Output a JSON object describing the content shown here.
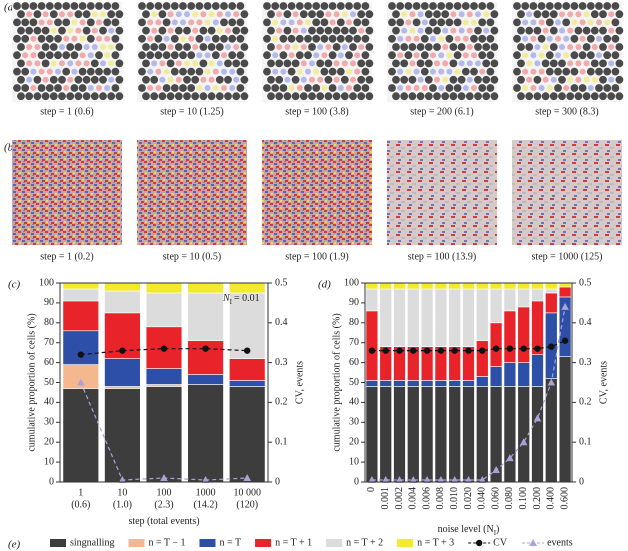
{
  "panel_a": {
    "label": "(a)",
    "captions": [
      "step = 1 (0.6)",
      "step = 10 (1.25)",
      "step = 100 (3.8)",
      "step = 200 (6.1)",
      "step = 300 (8.3)"
    ]
  },
  "panel_b": {
    "label": "(b)",
    "captions": [
      "step = 1 (0.2)",
      "step = 10 (0.5)",
      "step = 100 (1.9)",
      "step = 100 (13.9)",
      "step = 1000 (125)"
    ]
  },
  "chart_data": [
    {
      "type": "bar",
      "panel_label": "(c)",
      "categories": [
        "1",
        "10",
        "100",
        "1000",
        "10 000"
      ],
      "category_notes": [
        "(0.6)",
        "(1.0)",
        "(2.3)",
        "(14.2)",
        "(120)"
      ],
      "xlabel": "step (total events)",
      "ylabel": "cumulative proportion of cells (%)",
      "y2label": "CV, events",
      "ylim": [
        0,
        100
      ],
      "yticks": [
        0,
        10,
        20,
        30,
        40,
        50,
        60,
        70,
        80,
        90,
        100
      ],
      "y2lim": [
        0,
        0.5
      ],
      "y2ticks": [
        0,
        0.1,
        0.2,
        0.3,
        0.4,
        0.5
      ],
      "annotation": {
        "symbol": "N",
        "subscript": "I",
        "text": "= 0.01"
      },
      "series": [
        {
          "name": "singnalling",
          "color": "#3d3d3d",
          "values": [
            47,
            47,
            48,
            49,
            48
          ]
        },
        {
          "name": "n = T − 1",
          "color": "#f5b78e",
          "values": [
            12,
            1,
            1,
            0,
            0
          ]
        },
        {
          "name": "n = T",
          "color": "#2e4fa8",
          "values": [
            17,
            14,
            8,
            5,
            3
          ]
        },
        {
          "name": "n = T + 1",
          "color": "#e8242a",
          "values": [
            15,
            23,
            21,
            17,
            11
          ]
        },
        {
          "name": "n = T + 2",
          "color": "#dcdcdc",
          "values": [
            6,
            11,
            17,
            24,
            33
          ]
        },
        {
          "name": "n = T + 3",
          "color": "#f2ea2a",
          "values": [
            3,
            4,
            5,
            5,
            5
          ]
        },
        {
          "name": "CV",
          "color": "#111111",
          "axis": "y2",
          "marker": "circle",
          "values": [
            0.32,
            0.33,
            0.335,
            0.335,
            0.33
          ]
        },
        {
          "name": "events",
          "color": "#a9a3d6",
          "axis": "y2",
          "marker": "triangle",
          "values": [
            0.25,
            0.005,
            0.01,
            0.005,
            0.01
          ]
        }
      ]
    },
    {
      "type": "bar",
      "panel_label": "(d)",
      "categories": [
        "0",
        "0.001",
        "0.002",
        "0.004",
        "0.006",
        "0.008",
        "0.010",
        "0.020",
        "0.040",
        "0.060",
        "0.080",
        "0.100",
        "0.200",
        "0.400",
        "0.600"
      ],
      "xlabel": "noise level (N",
      "xlabel_sub": "I",
      "xlabel_end": ")",
      "ylabel": "cumulative proportion of cells (%)",
      "y2label": "CV, events",
      "ylim": [
        0,
        100
      ],
      "yticks": [
        0,
        10,
        20,
        30,
        40,
        50,
        60,
        70,
        80,
        90,
        100
      ],
      "y2lim": [
        0,
        0.5
      ],
      "y2ticks": [
        0,
        0.1,
        0.2,
        0.3,
        0.4,
        0.5
      ],
      "series": [
        {
          "color": "#3d3d3d",
          "values": [
            48,
            48,
            48,
            48,
            48,
            48,
            48,
            48,
            48,
            48,
            48,
            48,
            48,
            52,
            63
          ]
        },
        {
          "color": "#f5b78e",
          "values": [
            0,
            0,
            0,
            0,
            0,
            0,
            0,
            0,
            0,
            0,
            0,
            0,
            0,
            0,
            0
          ]
        },
        {
          "color": "#2e4fa8",
          "values": [
            3,
            3,
            3,
            3,
            3,
            3,
            3,
            3,
            5,
            10,
            12,
            12,
            16,
            33,
            30
          ]
        },
        {
          "color": "#e8242a",
          "values": [
            35,
            17,
            17,
            17,
            17,
            17,
            17,
            17,
            18,
            22,
            26,
            28,
            27,
            10,
            5
          ]
        },
        {
          "color": "#dcdcdc",
          "values": [
            11,
            29,
            29,
            29,
            29,
            29,
            29,
            29,
            26,
            17,
            11,
            9,
            6,
            2,
            0
          ]
        },
        {
          "color": "#f2ea2a",
          "values": [
            3,
            3,
            3,
            3,
            3,
            3,
            3,
            3,
            3,
            3,
            3,
            3,
            3,
            3,
            2
          ]
        },
        {
          "color": "#111111",
          "axis": "y2",
          "marker": "circle",
          "values": [
            0.33,
            0.33,
            0.33,
            0.33,
            0.33,
            0.33,
            0.33,
            0.33,
            0.33,
            0.335,
            0.335,
            0.335,
            0.335,
            0.34,
            0.355
          ]
        },
        {
          "color": "#a9a3d6",
          "axis": "y2",
          "marker": "triangle",
          "values": [
            0.005,
            0.005,
            0.005,
            0.005,
            0.005,
            0.005,
            0.005,
            0.005,
            0.005,
            0.03,
            0.06,
            0.1,
            0.16,
            0.25,
            0.44
          ]
        }
      ]
    }
  ],
  "legend_label": "(e)"
}
